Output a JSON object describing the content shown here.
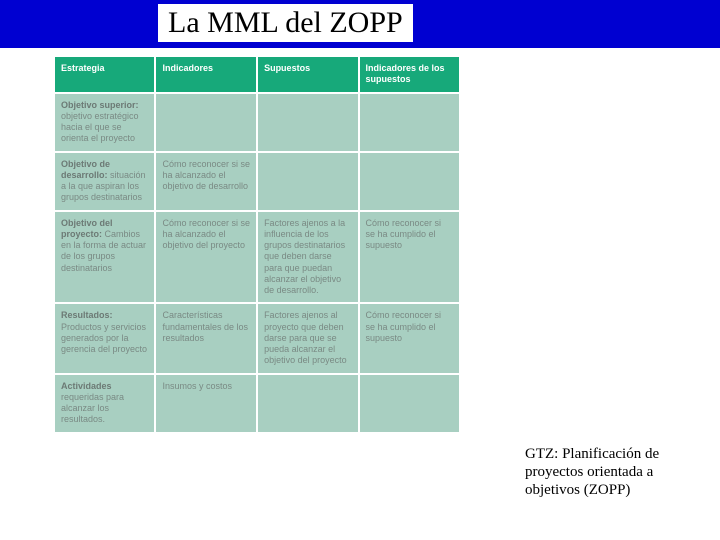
{
  "title": "La MML del ZOPP",
  "caption": "GTZ: Planificación de proyectos orientada a objetivos (ZOPP)",
  "table": {
    "background_color": "#a8cfc1",
    "header_color": "#17a97a",
    "border_color": "#ffffff",
    "text_color": "#7a8a84",
    "headers": [
      "Estrategia",
      "Indicadores",
      "Supuestos",
      "Indicadores de los supuestos"
    ],
    "rows": [
      {
        "c0_bold": "Objetivo superior:",
        "c0_rest": "objetivo estratégico hacia el que se orienta el proyecto",
        "c1": "",
        "c2": "",
        "c3": ""
      },
      {
        "c0_bold": "Objetivo de desarrollo:",
        "c0_rest": "situación a la que aspiran los grupos destinatarios",
        "c1": "Cómo reconocer si se ha alcanzado el objetivo de desarrollo",
        "c2": "",
        "c3": ""
      },
      {
        "c0_bold": "Objetivo del proyecto:",
        "c0_rest": "Cambios en la forma de actuar de los grupos destinatarios",
        "c1": "Cómo reconocer si se ha alcanzado el objetivo del proyecto",
        "c2": "Factores ajenos a la influencia de los grupos destinatarios que deben darse para que puedan alcanzar el objetivo de desarrollo.",
        "c3": "Cómo reconocer si se ha cumplido el supuesto"
      },
      {
        "c0_bold": "Resultados:",
        "c0_rest": "Productos y servicios generados por la gerencia del proyecto",
        "c1": "Características fundamentales de los resultados",
        "c2": "Factores ajenos al proyecto que deben darse para que se pueda alcanzar el objetivo del proyecto",
        "c3": "Cómo reconocer si se ha cumplido el supuesto"
      },
      {
        "c0_bold": "Actividades",
        "c0_rest": "requeridas para alcanzar los resultados.",
        "c1": "Insumos y costos",
        "c2": "",
        "c3": ""
      }
    ]
  }
}
